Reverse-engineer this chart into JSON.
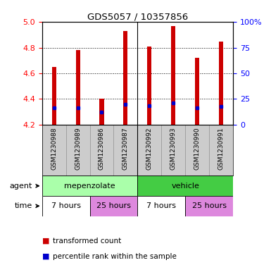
{
  "title": "GDS5057 / 10357856",
  "samples": [
    "GSM1230988",
    "GSM1230989",
    "GSM1230986",
    "GSM1230987",
    "GSM1230992",
    "GSM1230993",
    "GSM1230990",
    "GSM1230991"
  ],
  "bar_tops": [
    4.65,
    4.78,
    4.4,
    4.93,
    4.81,
    4.97,
    4.72,
    4.85
  ],
  "bar_bottom": 4.2,
  "percentile_values": [
    4.33,
    4.33,
    4.3,
    4.36,
    4.35,
    4.37,
    4.33,
    4.34
  ],
  "ylim": [
    4.2,
    5.0
  ],
  "yticks_left": [
    4.2,
    4.4,
    4.6,
    4.8,
    5.0
  ],
  "yticks_right": [
    0,
    25,
    50,
    75,
    100
  ],
  "bar_color": "#cc0000",
  "percentile_color": "#0000cc",
  "plot_bg": "#ffffff",
  "sample_bg": "#cccccc",
  "agent_colors": [
    "#aaffaa",
    "#44cc44"
  ],
  "time_colors": [
    "#ffffff",
    "#dd88dd",
    "#ffffff",
    "#dd88dd"
  ],
  "time_labels": [
    "7 hours",
    "25 hours",
    "7 hours",
    "25 hours"
  ],
  "agent_labels": [
    "mepenzolate",
    "vehicle"
  ],
  "legend_red_label": "transformed count",
  "legend_blue_label": "percentile rank within the sample",
  "bar_width": 0.18,
  "group_sep": 3.5
}
